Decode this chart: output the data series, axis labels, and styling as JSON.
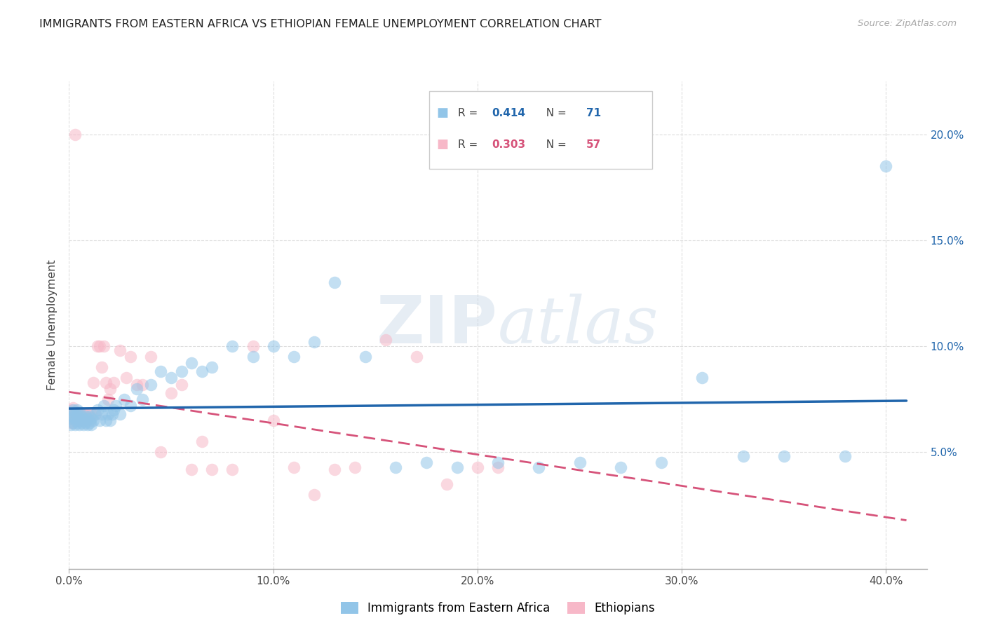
{
  "title": "IMMIGRANTS FROM EASTERN AFRICA VS ETHIOPIAN FEMALE UNEMPLOYMENT CORRELATION CHART",
  "source": "Source: ZipAtlas.com",
  "ylabel": "Female Unemployment",
  "xlim": [
    0.0,
    0.42
  ],
  "ylim": [
    -0.005,
    0.225
  ],
  "xlabel_vals": [
    0.0,
    0.1,
    0.2,
    0.3,
    0.4
  ],
  "ylabel_vals": [
    0.05,
    0.1,
    0.15,
    0.2
  ],
  "watermark": "ZIPatlas",
  "legend_r1": "0.414",
  "legend_n1": "71",
  "legend_r2": "0.303",
  "legend_n2": "57",
  "color_blue": "#92c5e8",
  "color_pink": "#f7b8c8",
  "color_blue_line": "#2166ac",
  "color_pink_line": "#d6537a",
  "blue_scatter_x": [
    0.001,
    0.001,
    0.001,
    0.002,
    0.002,
    0.002,
    0.003,
    0.003,
    0.003,
    0.004,
    0.004,
    0.004,
    0.005,
    0.005,
    0.005,
    0.006,
    0.006,
    0.007,
    0.007,
    0.008,
    0.008,
    0.009,
    0.009,
    0.01,
    0.01,
    0.011,
    0.011,
    0.012,
    0.013,
    0.014,
    0.015,
    0.016,
    0.017,
    0.018,
    0.019,
    0.02,
    0.021,
    0.022,
    0.023,
    0.025,
    0.027,
    0.03,
    0.033,
    0.036,
    0.04,
    0.045,
    0.05,
    0.055,
    0.06,
    0.065,
    0.07,
    0.08,
    0.09,
    0.1,
    0.11,
    0.12,
    0.13,
    0.145,
    0.16,
    0.175,
    0.19,
    0.21,
    0.23,
    0.25,
    0.27,
    0.29,
    0.31,
    0.33,
    0.35,
    0.38,
    0.4
  ],
  "blue_scatter_y": [
    0.063,
    0.066,
    0.069,
    0.064,
    0.067,
    0.07,
    0.063,
    0.066,
    0.069,
    0.064,
    0.067,
    0.07,
    0.063,
    0.066,
    0.069,
    0.064,
    0.067,
    0.063,
    0.066,
    0.064,
    0.067,
    0.063,
    0.066,
    0.064,
    0.067,
    0.063,
    0.066,
    0.065,
    0.068,
    0.07,
    0.065,
    0.068,
    0.072,
    0.065,
    0.068,
    0.065,
    0.068,
    0.07,
    0.072,
    0.068,
    0.075,
    0.072,
    0.08,
    0.075,
    0.082,
    0.088,
    0.085,
    0.088,
    0.092,
    0.088,
    0.09,
    0.1,
    0.095,
    0.1,
    0.095,
    0.102,
    0.13,
    0.095,
    0.043,
    0.045,
    0.043,
    0.045,
    0.043,
    0.045,
    0.043,
    0.045,
    0.085,
    0.048,
    0.048,
    0.048,
    0.185
  ],
  "pink_scatter_x": [
    0.001,
    0.001,
    0.001,
    0.002,
    0.002,
    0.002,
    0.003,
    0.003,
    0.004,
    0.004,
    0.005,
    0.005,
    0.006,
    0.006,
    0.007,
    0.007,
    0.008,
    0.008,
    0.009,
    0.009,
    0.01,
    0.011,
    0.012,
    0.013,
    0.014,
    0.015,
    0.016,
    0.017,
    0.018,
    0.019,
    0.02,
    0.022,
    0.025,
    0.028,
    0.03,
    0.033,
    0.036,
    0.04,
    0.045,
    0.05,
    0.055,
    0.06,
    0.065,
    0.07,
    0.08,
    0.09,
    0.1,
    0.11,
    0.12,
    0.13,
    0.14,
    0.155,
    0.17,
    0.185,
    0.2,
    0.21,
    0.003
  ],
  "pink_scatter_y": [
    0.064,
    0.067,
    0.07,
    0.064,
    0.068,
    0.071,
    0.065,
    0.068,
    0.065,
    0.068,
    0.065,
    0.068,
    0.065,
    0.068,
    0.065,
    0.068,
    0.065,
    0.068,
    0.065,
    0.068,
    0.065,
    0.068,
    0.083,
    0.068,
    0.1,
    0.1,
    0.09,
    0.1,
    0.083,
    0.075,
    0.08,
    0.083,
    0.098,
    0.085,
    0.095,
    0.082,
    0.082,
    0.095,
    0.05,
    0.078,
    0.082,
    0.042,
    0.055,
    0.042,
    0.042,
    0.1,
    0.065,
    0.043,
    0.03,
    0.042,
    0.043,
    0.103,
    0.095,
    0.035,
    0.043,
    0.043,
    0.2
  ]
}
